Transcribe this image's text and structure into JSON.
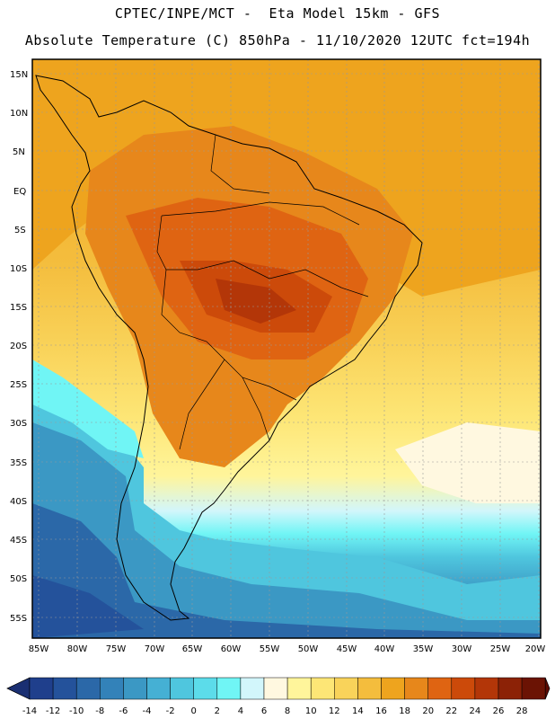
{
  "title_line1": "CPTEC/INPE/MCT -  Eta Model 15km - GFS",
  "title_line2": "Absolute Temperature (C) 850hPa - 11/10/2020 12UTC fct=194h",
  "lat_labels": [
    "15N",
    "10N",
    "5N",
    "EQ",
    "5S",
    "10S",
    "15S",
    "20S",
    "25S",
    "30S",
    "35S",
    "40S",
    "45S",
    "50S",
    "55S"
  ],
  "lon_labels": [
    "85W",
    "80W",
    "75W",
    "70W",
    "65W",
    "60W",
    "55W",
    "50W",
    "45W",
    "40W",
    "35W",
    "30W",
    "25W",
    "20W"
  ],
  "colorbar": {
    "labels": [
      "-14",
      "-12",
      "-10",
      "-8",
      "-6",
      "-4",
      "-2",
      "0",
      "2",
      "4",
      "6",
      "8",
      "10",
      "12",
      "14",
      "16",
      "18",
      "20",
      "22",
      "24",
      "26",
      "28"
    ],
    "colors": [
      "#1f3f8c",
      "#24529b",
      "#2b68a8",
      "#3382b9",
      "#3b98c4",
      "#45b0d4",
      "#4fc6de",
      "#5cdcea",
      "#70f5f5",
      "#d2f6fb",
      "#fff8e0",
      "#fff59b",
      "#fde676",
      "#f9d35a",
      "#f4bd3d",
      "#eea41e",
      "#e7871b",
      "#df6412",
      "#cc4a0a",
      "#b33608",
      "#8c2206",
      "#6b1304"
    ]
  }
}
